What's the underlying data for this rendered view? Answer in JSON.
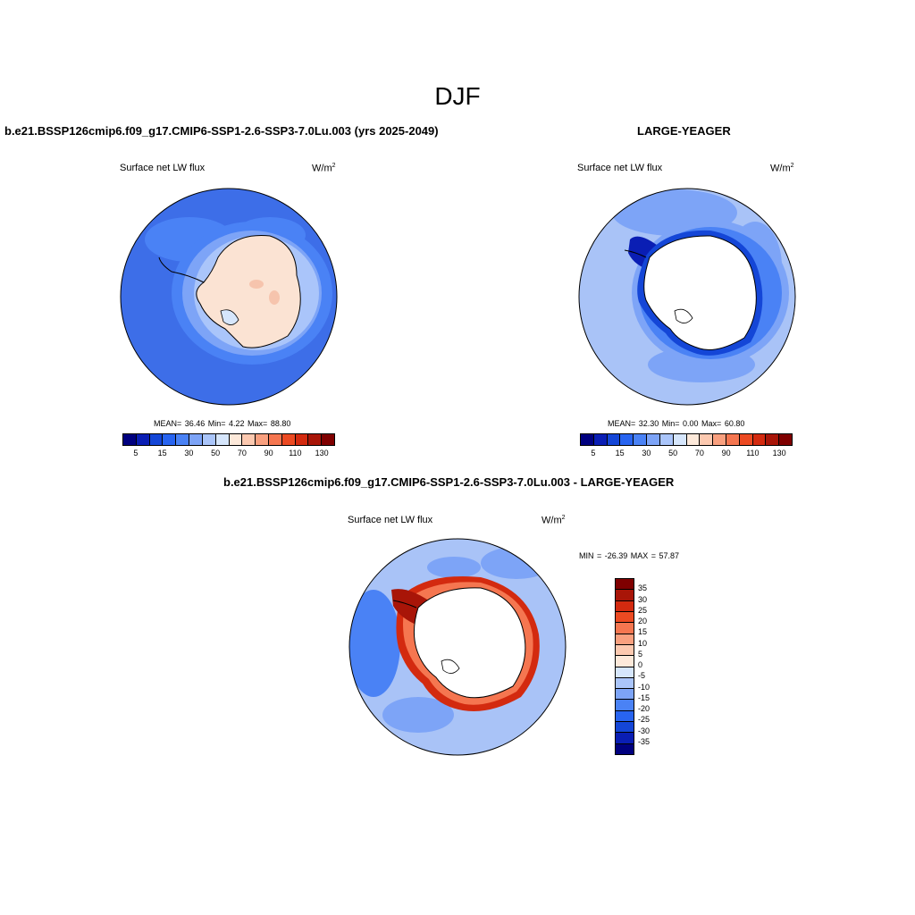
{
  "figure": {
    "main_title": "DJF",
    "variable": "Surface net LW flux",
    "unit_base": "W/m",
    "unit_exp": "2"
  },
  "panels": {
    "case": {
      "title": "b.e21.BSSP126cmip6.f09_g17.CMIP6-SSP1-2.6-SSP3-7.0Lu.003 (yrs 2025-2049)",
      "stats": "MEAN=  36.46  Min=   4.22  Max=  88.80"
    },
    "obs": {
      "title": "LARGE-YEAGER",
      "stats": "MEAN=  32.30  Min=   0.00  Max=  60.80"
    },
    "diff": {
      "title": "b.e21.BSSP126cmip6.f09_g17.CMIP6-SSP1-2.6-SSP3-7.0Lu.003 - LARGE-YEAGER",
      "stats": "MIN = -26.39 MAX =  57.87"
    }
  },
  "colorbars": {
    "abs_ticks": [
      "5",
      "15",
      "30",
      "50",
      "70",
      "90",
      "110",
      "130"
    ],
    "abs_colors": [
      "#00007f",
      "#0a1eb4",
      "#1446d7",
      "#2864f0",
      "#4a82f5",
      "#7da4f7",
      "#aac5fa",
      "#d6e6fc",
      "#fde9da",
      "#fcc9b0",
      "#f9a07f",
      "#f57650",
      "#ec4a22",
      "#d32a0f",
      "#a81508",
      "#7f0000"
    ],
    "diff_ticks": [
      "35",
      "30",
      "25",
      "20",
      "15",
      "10",
      "5",
      "0",
      "-5",
      "-10",
      "-15",
      "-20",
      "-25",
      "-30",
      "-35"
    ],
    "diff_colors": [
      "#7f0000",
      "#a81508",
      "#d32a0f",
      "#ec4a22",
      "#f57650",
      "#f9a07f",
      "#fcc9b0",
      "#fde9da",
      "#d6e6fc",
      "#aac5fa",
      "#7da4f7",
      "#4a82f5",
      "#2864f0",
      "#1446d7",
      "#0a1eb4",
      "#00007f"
    ]
  },
  "colors": {
    "ocean_case": "#3d6ee8",
    "ocean_obs": "#a9c3f7",
    "ocean_diff": "#a9c3f7",
    "land_case": "#fbe3d3",
    "land_masked": "#ffffff"
  }
}
